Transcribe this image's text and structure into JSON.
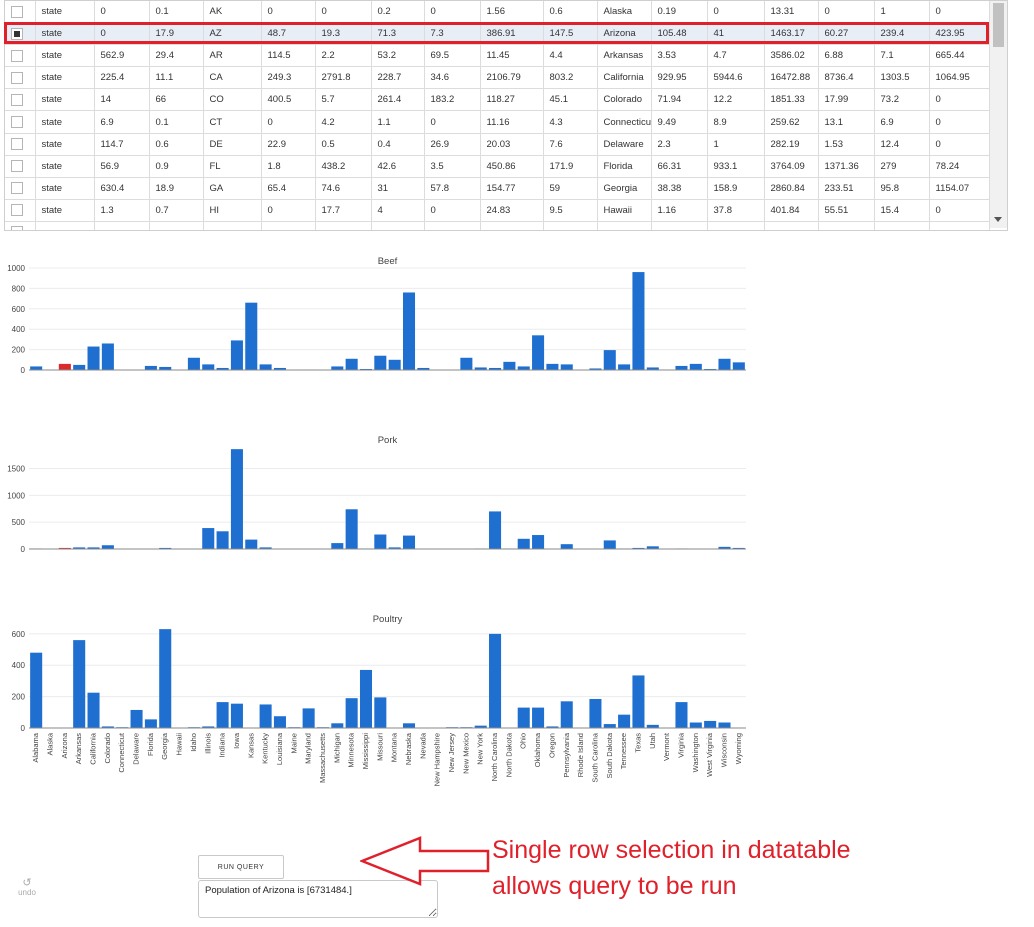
{
  "table": {
    "selected_index": 1,
    "rows": [
      [
        "state",
        "0",
        "0.1",
        "AK",
        "0",
        "0",
        "0.2",
        "0",
        "1.56",
        "0.6",
        "Alaska",
        "0.19",
        "0",
        "13.31",
        "0",
        "1",
        "0"
      ],
      [
        "state",
        "0",
        "17.9",
        "AZ",
        "48.7",
        "19.3",
        "71.3",
        "7.3",
        "386.91",
        "147.5",
        "Arizona",
        "105.48",
        "41",
        "1463.17",
        "60.27",
        "239.4",
        "423.95"
      ],
      [
        "state",
        "562.9",
        "29.4",
        "AR",
        "114.5",
        "2.2",
        "53.2",
        "69.5",
        "11.45",
        "4.4",
        "Arkansas",
        "3.53",
        "4.7",
        "3586.02",
        "6.88",
        "7.1",
        "665.44"
      ],
      [
        "state",
        "225.4",
        "11.1",
        "CA",
        "249.3",
        "2791.8",
        "228.7",
        "34.6",
        "2106.79",
        "803.2",
        "California",
        "929.95",
        "5944.6",
        "16472.88",
        "8736.4",
        "1303.5",
        "1064.95"
      ],
      [
        "state",
        "14",
        "66",
        "CO",
        "400.5",
        "5.7",
        "261.4",
        "183.2",
        "118.27",
        "45.1",
        "Colorado",
        "71.94",
        "12.2",
        "1851.33",
        "17.99",
        "73.2",
        "0"
      ],
      [
        "state",
        "6.9",
        "0.1",
        "CT",
        "0",
        "4.2",
        "1.1",
        "0",
        "11.16",
        "4.3",
        "Connecticut",
        "9.49",
        "8.9",
        "259.62",
        "13.1",
        "6.9",
        "0"
      ],
      [
        "state",
        "114.7",
        "0.6",
        "DE",
        "22.9",
        "0.5",
        "0.4",
        "26.9",
        "20.03",
        "7.6",
        "Delaware",
        "2.3",
        "1",
        "282.19",
        "1.53",
        "12.4",
        "0"
      ],
      [
        "state",
        "56.9",
        "0.9",
        "FL",
        "1.8",
        "438.2",
        "42.6",
        "3.5",
        "450.86",
        "171.9",
        "Florida",
        "66.31",
        "933.1",
        "3764.09",
        "1371.36",
        "279",
        "78.24"
      ],
      [
        "state",
        "630.4",
        "18.9",
        "GA",
        "65.4",
        "74.6",
        "31",
        "57.8",
        "154.77",
        "59",
        "Georgia",
        "38.38",
        "158.9",
        "2860.84",
        "233.51",
        "95.8",
        "1154.07"
      ],
      [
        "state",
        "1.3",
        "0.7",
        "HI",
        "0",
        "17.7",
        "4",
        "0",
        "24.83",
        "9.5",
        "Hawaii",
        "1.16",
        "37.8",
        "401.84",
        "55.51",
        "15.4",
        "0"
      ],
      [
        "",
        "",
        "",
        "",
        "",
        "",
        "",
        "",
        "",
        "",
        "",
        "",
        "",
        "",
        "",
        "",
        ""
      ]
    ]
  },
  "states": [
    "Alabama",
    "Alaska",
    "Arizona",
    "Arkansas",
    "California",
    "Colorado",
    "Connecticut",
    "Delaware",
    "Florida",
    "Georgia",
    "Hawaii",
    "Idaho",
    "Illinois",
    "Indiana",
    "Iowa",
    "Kansas",
    "Kentucky",
    "Louisiana",
    "Maine",
    "Maryland",
    "Massachusetts",
    "Michigan",
    "Minnesota",
    "Mississippi",
    "Missouri",
    "Montana",
    "Nebraska",
    "Nevada",
    "New Hampshire",
    "New Jersey",
    "New Mexico",
    "New York",
    "North Carolina",
    "North Dakota",
    "Ohio",
    "Oklahoma",
    "Oregon",
    "Pennsylvania",
    "Rhode Island",
    "South Carolina",
    "South Dakota",
    "Tennessee",
    "Texas",
    "Utah",
    "Vermont",
    "Virginia",
    "Washington",
    "West Virginia",
    "Wisconsin",
    "Wyoming"
  ],
  "chart_data": [
    {
      "type": "bar",
      "title": "Beef",
      "ylim": [
        0,
        1000
      ],
      "yticks": [
        0,
        200,
        400,
        600,
        800,
        1000
      ],
      "highlight_index": 2,
      "values": [
        35,
        0,
        60,
        50,
        230,
        260,
        0,
        0,
        40,
        30,
        0,
        120,
        55,
        20,
        290,
        660,
        55,
        20,
        0,
        5,
        0,
        35,
        110,
        10,
        140,
        100,
        760,
        20,
        0,
        0,
        120,
        25,
        20,
        80,
        35,
        340,
        60,
        55,
        0,
        15,
        195,
        55,
        960,
        25,
        5,
        40,
        60,
        10,
        110,
        75
      ]
    },
    {
      "type": "bar",
      "title": "Pork",
      "ylim": [
        0,
        1900
      ],
      "yticks": [
        0,
        500,
        1000,
        1500
      ],
      "highlight_index": 2,
      "values": [
        10,
        0,
        20,
        30,
        30,
        70,
        0,
        0,
        5,
        20,
        5,
        0,
        390,
        330,
        1860,
        175,
        30,
        0,
        0,
        0,
        0,
        110,
        740,
        10,
        270,
        30,
        250,
        0,
        0,
        0,
        0,
        10,
        700,
        10,
        190,
        260,
        0,
        90,
        0,
        5,
        160,
        10,
        20,
        50,
        5,
        10,
        0,
        0,
        40,
        20
      ]
    },
    {
      "type": "bar",
      "title": "Poultry",
      "ylim": [
        0,
        650
      ],
      "yticks": [
        0,
        200,
        400,
        600
      ],
      "highlight_index": 2,
      "values": [
        480,
        0,
        0,
        560,
        225,
        10,
        5,
        115,
        55,
        630,
        0,
        5,
        10,
        165,
        155,
        0,
        150,
        75,
        5,
        125,
        5,
        30,
        190,
        370,
        195,
        0,
        30,
        0,
        0,
        5,
        5,
        15,
        600,
        0,
        130,
        130,
        10,
        170,
        0,
        185,
        25,
        85,
        335,
        20,
        0,
        165,
        35,
        45,
        35,
        0
      ]
    }
  ],
  "colors": {
    "bar": "#1f6fd0",
    "highlight": "#dc2a2a",
    "annotation": "#e0202a"
  },
  "controls": {
    "run_label": "RUN QUERY",
    "output": "Population of Arizona is [6731484.]",
    "undo_label": "undo",
    "undo_icon": "↺"
  },
  "annotation": {
    "line1": "Single row selection in datatable",
    "line2": "allows query to be run"
  }
}
